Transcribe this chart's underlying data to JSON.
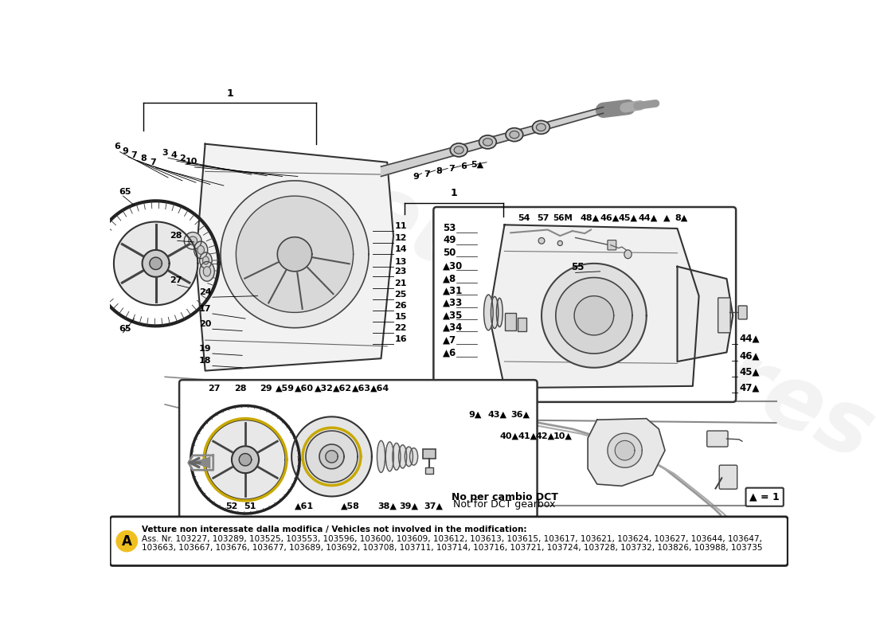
{
  "bg_color": "#ffffff",
  "watermark_color": "#e0e0e0",
  "bottom_box": {
    "line1_bold": "Vetture non interessate dalla modifica / Vehicles not involved in the modification:",
    "line2": "Ass. Nr. 103227, 103289, 103525, 103553, 103596, 103600, 103609, 103612, 103613, 103615, 103617, 103621, 103624, 103627, 103644, 103647,",
    "line3": "103663, 103667, 103676, 103677, 103689, 103692, 103708, 103711, 103714, 103716, 103721, 103724, 103728, 103732, 103826, 103988, 103735"
  },
  "dct_note1": "No per cambio DCT",
  "dct_note2": "Not for DCT gearbox",
  "legend": "▲ = 1"
}
